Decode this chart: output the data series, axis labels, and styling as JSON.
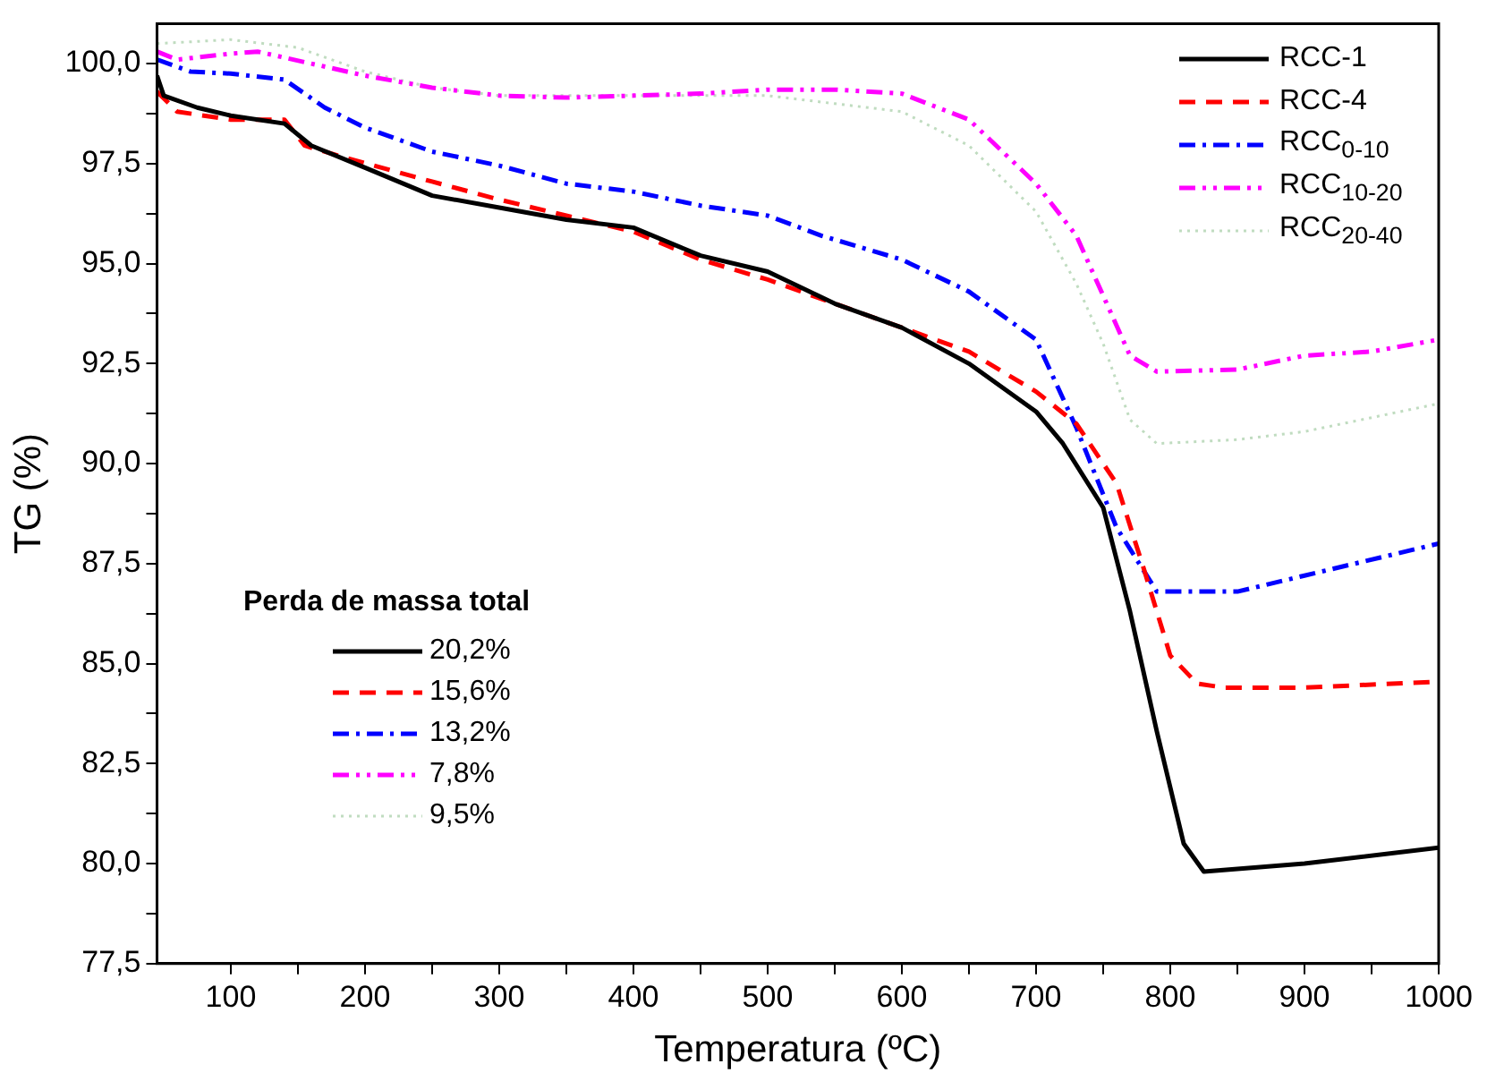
{
  "chart_data": {
    "type": "line",
    "xlabel": "Temperatura (ºC)",
    "ylabel": "TG (%)",
    "legend": "top right",
    "xlim": [
      45,
      1000
    ],
    "ylim": [
      77.5,
      101
    ],
    "xticks": [
      100,
      {
        "value": 150,
        "label": null
      },
      200,
      {
        "value": 250,
        "label": null
      },
      300,
      {
        "value": 350,
        "label": null
      },
      400,
      {
        "value": 450,
        "label": null
      },
      500,
      {
        "value": 550,
        "label": null
      },
      600,
      {
        "value": 650,
        "label": null
      },
      700,
      {
        "value": 750,
        "label": null
      },
      800,
      {
        "value": 850,
        "label": null
      },
      900,
      {
        "value": 950,
        "label": null
      },
      1000
    ],
    "yticks": [
      {
        "value": 77.5,
        "label": "77,5"
      },
      {
        "value": 78.75,
        "label": null
      },
      {
        "value": 80,
        "label": "80,0"
      },
      {
        "value": 81.25,
        "label": null
      },
      {
        "value": 82.5,
        "label": "82,5"
      },
      {
        "value": 83.75,
        "label": null
      },
      {
        "value": 85,
        "label": "85,0"
      },
      {
        "value": 86.25,
        "label": null
      },
      {
        "value": 87.5,
        "label": "87,5"
      },
      {
        "value": 88.75,
        "label": null
      },
      {
        "value": 90,
        "label": "90,0"
      },
      {
        "value": 91.25,
        "label": null
      },
      {
        "value": 92.5,
        "label": "92,5"
      },
      {
        "value": 93.75,
        "label": null
      },
      {
        "value": 95,
        "label": "95,0"
      },
      {
        "value": 96.25,
        "label": null
      },
      {
        "value": 97.5,
        "label": "97,5"
      },
      {
        "value": 98.75,
        "label": null
      },
      {
        "value": 100,
        "label": "100,0"
      }
    ],
    "marker": "none",
    "annotations": [
      "Perda de massa total",
      "20,2%",
      "15,6%",
      "13,2%",
      "7,8%",
      "9,5%"
    ],
    "series": [
      {
        "name": "RCC-1",
        "color": "#000000",
        "line_style": "solid",
        "x": [
          45,
          50,
          75,
          100,
          140,
          160,
          200,
          250,
          300,
          350,
          400,
          450,
          500,
          550,
          600,
          650,
          700,
          720,
          750,
          770,
          790,
          810,
          825,
          900,
          1000
        ],
        "values": [
          99.7,
          99.2,
          98.9,
          98.7,
          98.5,
          97.95,
          97.4,
          96.7,
          96.4,
          96.1,
          95.9,
          95.2,
          94.8,
          94.0,
          93.4,
          92.5,
          91.3,
          90.5,
          88.9,
          86.3,
          83.3,
          80.5,
          79.8,
          80.0,
          80.4
        ]
      },
      {
        "name": "RCC-4",
        "color": "#ff0000",
        "line_style": "dashed",
        "x": [
          45,
          60,
          100,
          140,
          155,
          180,
          250,
          300,
          350,
          400,
          450,
          500,
          550,
          600,
          650,
          700,
          730,
          760,
          780,
          800,
          820,
          840,
          900,
          1000
        ],
        "values": [
          99.3,
          98.8,
          98.6,
          98.6,
          97.95,
          97.7,
          97.05,
          96.6,
          96.2,
          95.8,
          95.1,
          94.6,
          94.0,
          93.4,
          92.8,
          91.8,
          91.0,
          89.5,
          87.4,
          85.2,
          84.5,
          84.4,
          84.4,
          84.55
        ]
      },
      {
        "name": "RCC$_{0-10}$",
        "color": "#0000ff",
        "line_style": "dashdot",
        "x": [
          45,
          70,
          100,
          140,
          170,
          200,
          250,
          300,
          350,
          400,
          450,
          500,
          540,
          600,
          650,
          700,
          730,
          760,
          790,
          850,
          900,
          1000
        ],
        "values": [
          100.1,
          99.8,
          99.75,
          99.6,
          98.9,
          98.4,
          97.8,
          97.45,
          97.0,
          96.8,
          96.45,
          96.2,
          95.7,
          95.1,
          94.3,
          93.1,
          90.9,
          88.4,
          86.8,
          86.8,
          87.2,
          88.0
        ]
      },
      {
        "name": "RCC$_{10-20}$",
        "color": "#ff00ff",
        "line_style": "dashdotdot",
        "x": [
          45,
          60,
          100,
          120,
          160,
          200,
          250,
          300,
          350,
          400,
          450,
          500,
          550,
          600,
          650,
          700,
          730,
          750,
          770,
          790,
          850,
          900,
          950,
          1000
        ],
        "values": [
          100.3,
          100.1,
          100.25,
          100.3,
          100.0,
          99.7,
          99.4,
          99.2,
          99.15,
          99.2,
          99.25,
          99.35,
          99.35,
          99.25,
          98.6,
          97.0,
          95.7,
          94.2,
          92.7,
          92.3,
          92.35,
          92.7,
          92.8,
          93.1
        ]
      },
      {
        "name": "RCC$_{20-40}$",
        "color": "#c0dcc0",
        "line_style": "dotted",
        "x": [
          45,
          100,
          150,
          200,
          250,
          300,
          350,
          400,
          450,
          500,
          550,
          600,
          650,
          700,
          730,
          750,
          770,
          790,
          850,
          900,
          1000
        ],
        "values": [
          100.5,
          100.6,
          100.4,
          99.8,
          99.4,
          99.2,
          99.2,
          99.2,
          99.2,
          99.2,
          99.0,
          98.8,
          97.95,
          96.3,
          94.5,
          93.0,
          91.1,
          90.5,
          90.6,
          90.8,
          91.5
        ]
      }
    ]
  }
}
